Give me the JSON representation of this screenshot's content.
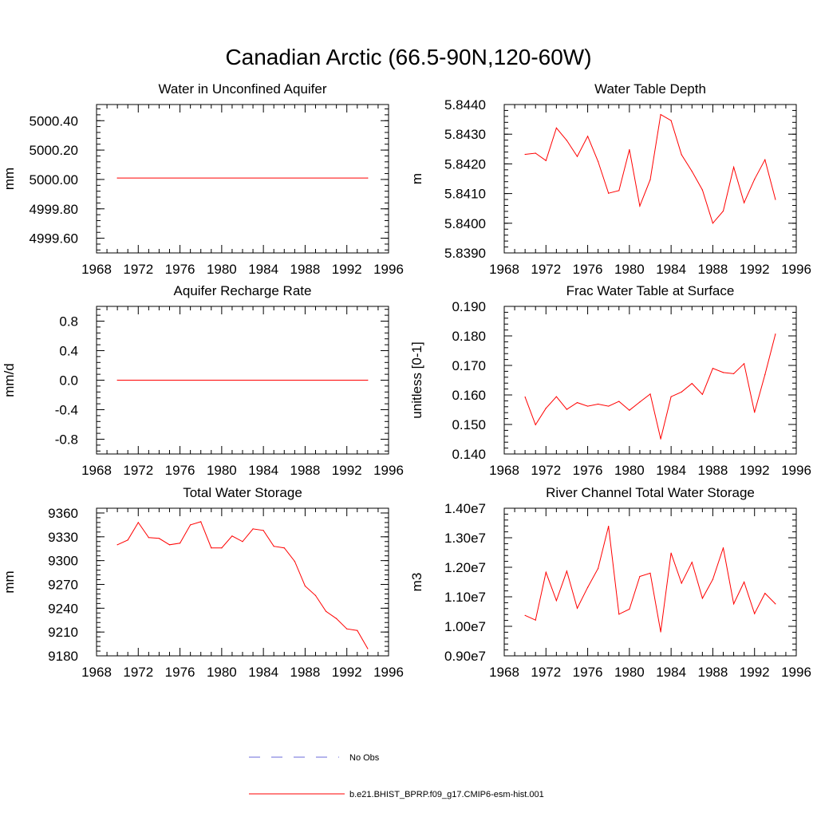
{
  "title": "Canadian Arctic (66.5-90N,120-60W)",
  "legend": {
    "entries": [
      {
        "label": "No Obs",
        "color": "#6a6ad8",
        "dash": "dashed"
      },
      {
        "label": "b.e21.BHIST_BPRP.f09_g17.CMIP6-esm-hist.001",
        "color": "#ff0000",
        "dash": "solid"
      }
    ],
    "position": "bottom-center"
  },
  "chart_data": [
    {
      "type": "line",
      "title": "Water in Unconfined Aquifer",
      "ylabel": "mm",
      "xlim": [
        1968,
        1996
      ],
      "xticks": [
        1968,
        1972,
        1976,
        1980,
        1984,
        1988,
        1992,
        1996
      ],
      "ylim": [
        4999.5,
        5000.51
      ],
      "yticks": [
        4999.6,
        4999.8,
        5000.0,
        5000.2,
        5000.4
      ],
      "yticklabels": [
        "4999.60",
        "4999.80",
        "5000.00",
        "5000.20",
        "5000.40"
      ],
      "x": [
        1970,
        1994
      ],
      "series": [
        {
          "color": "#ff0000",
          "values": [
            5000.01,
            5000.01
          ]
        }
      ]
    },
    {
      "type": "line",
      "title": "Water Table Depth",
      "ylabel": "m",
      "xlim": [
        1968,
        1996
      ],
      "xticks": [
        1968,
        1972,
        1976,
        1980,
        1984,
        1988,
        1992,
        1996
      ],
      "ylim": [
        5.839,
        5.844
      ],
      "yticks": [
        5.839,
        5.84,
        5.841,
        5.842,
        5.843,
        5.844
      ],
      "yticklabels": [
        "5.8390",
        "5.8400",
        "5.8410",
        "5.8420",
        "5.8430",
        "5.8440"
      ],
      "x": [
        1970,
        1971,
        1972,
        1973,
        1974,
        1975,
        1976,
        1977,
        1978,
        1979,
        1980,
        1981,
        1982,
        1983,
        1984,
        1985,
        1986,
        1987,
        1988,
        1989,
        1990,
        1991,
        1992,
        1993,
        1994
      ],
      "series": [
        {
          "color": "#ff0000",
          "values": [
            5.84232,
            5.84236,
            5.84211,
            5.84321,
            5.84279,
            5.84225,
            5.84293,
            5.84208,
            5.84101,
            5.8411,
            5.84248,
            5.84058,
            5.84147,
            5.84366,
            5.84346,
            5.84231,
            5.84175,
            5.84112,
            5.84,
            5.84041,
            5.84189,
            5.84069,
            5.84148,
            5.84214,
            5.8408
          ]
        }
      ]
    },
    {
      "type": "line",
      "title": "Aquifer Recharge Rate",
      "ylabel": "mm/d",
      "xlim": [
        1968,
        1996
      ],
      "xticks": [
        1968,
        1972,
        1976,
        1980,
        1984,
        1988,
        1992,
        1996
      ],
      "ylim": [
        -1.0,
        1.0
      ],
      "yticks": [
        -0.8,
        -0.4,
        0.0,
        0.4,
        0.8
      ],
      "yticklabels": [
        "-0.8",
        "-0.4",
        "0.0",
        "0.4",
        "0.8"
      ],
      "x": [
        1970,
        1994
      ],
      "series": [
        {
          "color": "#ff0000",
          "values": [
            0.0,
            0.0
          ]
        }
      ]
    },
    {
      "type": "line",
      "title": "Frac Water Table at Surface",
      "ylabel": "unitless [0-1]",
      "xlim": [
        1968,
        1996
      ],
      "xticks": [
        1968,
        1972,
        1976,
        1980,
        1984,
        1988,
        1992,
        1996
      ],
      "ylim": [
        0.14,
        0.19
      ],
      "yticks": [
        0.14,
        0.15,
        0.16,
        0.17,
        0.18,
        0.19
      ],
      "yticklabels": [
        "0.140",
        "0.150",
        "0.160",
        "0.170",
        "0.180",
        "0.190"
      ],
      "x": [
        1970,
        1971,
        1972,
        1973,
        1974,
        1975,
        1976,
        1977,
        1978,
        1979,
        1980,
        1981,
        1982,
        1983,
        1984,
        1985,
        1986,
        1987,
        1988,
        1989,
        1990,
        1991,
        1992,
        1993,
        1994
      ],
      "series": [
        {
          "color": "#ff0000",
          "values": [
            0.1593,
            0.1499,
            0.1555,
            0.1594,
            0.1551,
            0.1574,
            0.1562,
            0.1569,
            0.1562,
            0.1578,
            0.1548,
            0.1576,
            0.1603,
            0.1451,
            0.1594,
            0.161,
            0.1639,
            0.1602,
            0.169,
            0.1676,
            0.1672,
            0.1706,
            0.1541,
            0.1669,
            0.1806
          ]
        }
      ]
    },
    {
      "type": "line",
      "title": "Total Water Storage",
      "ylabel": "mm",
      "xlim": [
        1968,
        1996
      ],
      "xticks": [
        1968,
        1972,
        1976,
        1980,
        1984,
        1988,
        1992,
        1996
      ],
      "ylim": [
        9180,
        9366
      ],
      "yticks": [
        9180,
        9210,
        9240,
        9270,
        9300,
        9330,
        9360
      ],
      "yticklabels": [
        "9180",
        "9210",
        "9240",
        "9270",
        "9300",
        "9330",
        "9360"
      ],
      "x": [
        1970,
        1971,
        1972,
        1973,
        1974,
        1975,
        1976,
        1977,
        1978,
        1979,
        1980,
        1981,
        1982,
        1983,
        1984,
        1985,
        1986,
        1987,
        1988,
        1989,
        1990,
        1991,
        1992,
        1993,
        1994
      ],
      "series": [
        {
          "color": "#ff0000",
          "values": [
            9320,
            9326,
            9348,
            9329,
            9328,
            9320,
            9322,
            9345,
            9349,
            9316,
            9316,
            9331,
            9324,
            9340,
            9338,
            9318,
            9316,
            9299,
            9268,
            9256,
            9236,
            9227,
            9214,
            9212,
            9189
          ]
        }
      ]
    },
    {
      "type": "line",
      "title": "River Channel Total Water Storage",
      "ylabel": "m3",
      "xlim": [
        1968,
        1996
      ],
      "xticks": [
        1968,
        1972,
        1976,
        1980,
        1984,
        1988,
        1992,
        1996
      ],
      "ylim": [
        9000000,
        14000000
      ],
      "yticks": [
        9000000,
        10000000,
        11000000,
        12000000,
        13000000,
        14000000
      ],
      "yticklabels": [
        "0.90e7",
        "1.00e7",
        "1.10e7",
        "1.20e7",
        "1.30e7",
        "1.40e7"
      ],
      "x": [
        1970,
        1971,
        1972,
        1973,
        1974,
        1975,
        1976,
        1977,
        1978,
        1979,
        1980,
        1981,
        1982,
        1983,
        1984,
        1985,
        1986,
        1987,
        1988,
        1989,
        1990,
        1991,
        1992,
        1993,
        1994
      ],
      "series": [
        {
          "color": "#ff0000",
          "values": [
            10370000,
            10210000,
            11830000,
            10870000,
            11870000,
            10610000,
            11320000,
            11960000,
            13390000,
            10410000,
            10580000,
            11690000,
            11800000,
            9810000,
            12480000,
            11460000,
            12170000,
            10950000,
            11590000,
            12660000,
            10760000,
            11500000,
            10430000,
            11120000,
            10760000
          ]
        }
      ]
    }
  ]
}
